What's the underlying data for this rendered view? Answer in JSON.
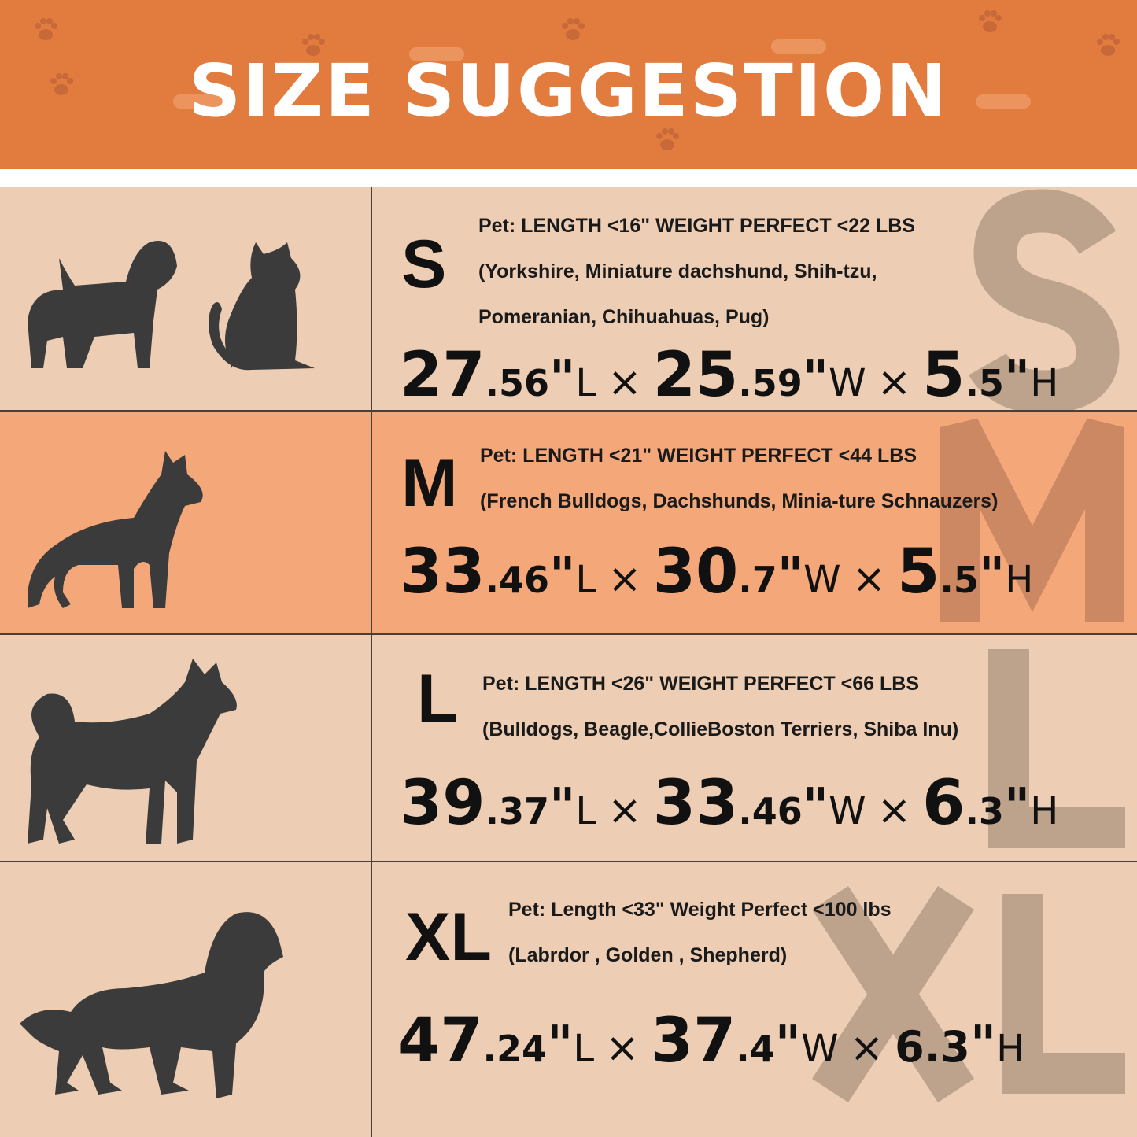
{
  "title": "SIZE SUGGESTION",
  "colors": {
    "header": "#E27C3E",
    "row_light": "#EDCDB3",
    "row_accent": "#F4A87A",
    "silhouette": "#3b3b3b",
    "watermark": "#B49A85"
  },
  "rows": [
    {
      "size": "S",
      "pets": [
        "dog-icon",
        "cat-icon"
      ],
      "lines": [
        "Pet:  LENGTH <16\"  WEIGHT PERFECT <22 LBS",
        "(Yorkshire, Miniature dachshund, Shih-tzu,",
        "Pomeranian, Chihuahuas, Pug)"
      ],
      "dims": [
        {
          "int": "27",
          "dec": ".56",
          "q": "\"",
          "u": "L"
        },
        {
          "int": "25",
          "dec": ".59",
          "q": "\"",
          "u": "W"
        },
        {
          "int": "5",
          "dec": ".5",
          "q": "\"",
          "u": "H"
        }
      ]
    },
    {
      "size": "M",
      "pets": [
        "dog-icon"
      ],
      "lines": [
        "Pet:  LENGTH <21\"  WEIGHT PERFECT <44 LBS",
        "(French Bulldogs, Dachshunds, Minia-ture Schnauzers)"
      ],
      "dims": [
        {
          "int": "33",
          "dec": ".46",
          "q": "\"",
          "u": "L"
        },
        {
          "int": "30",
          "dec": ".7",
          "q": "\"",
          "u": "W"
        },
        {
          "int": "5",
          "dec": ".5",
          "q": "\"",
          "u": "H"
        }
      ]
    },
    {
      "size": "L",
      "pets": [
        "dog-icon"
      ],
      "lines": [
        "Pet:  LENGTH <26\" WEIGHT PERFECT <66 LBS",
        "(Bulldogs, Beagle,CollieBoston Terriers, Shiba Inu)"
      ],
      "dims": [
        {
          "int": "39",
          "dec": ".37",
          "q": "\"",
          "u": "L"
        },
        {
          "int": "33",
          "dec": ".46",
          "q": "\"",
          "u": "W"
        },
        {
          "int": "6",
          "dec": ".3",
          "q": "\"",
          "u": "H"
        }
      ]
    },
    {
      "size": "XL",
      "pets": [
        "dog-icon"
      ],
      "lines": [
        "Pet:  Length <33\"  Weight Perfect <100 lbs",
        "(Labrdor , Golden ,  Shepherd)"
      ],
      "dims": [
        {
          "int": "47",
          "dec": ".24",
          "q": "\"",
          "u": "L"
        },
        {
          "int": "37",
          "dec": ".4",
          "q": "\"",
          "u": "W"
        },
        {
          "int": "6.3",
          "dec": "",
          "q": "\"",
          "u": "H"
        }
      ]
    }
  ]
}
